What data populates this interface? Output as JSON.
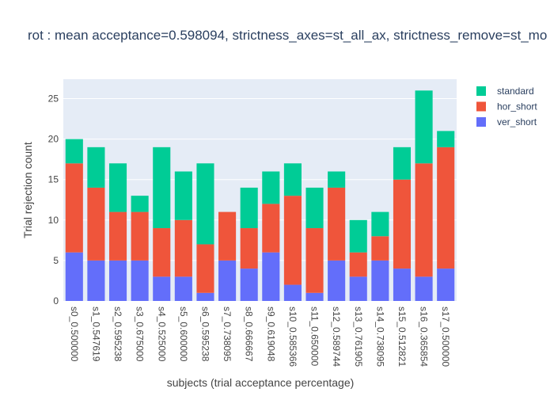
{
  "chart_data": {
    "type": "bar",
    "barmode": "stack",
    "title": "rot : mean acceptance=0.598094, strictness_axes=st_all_ax, strictness_remove=st_mo",
    "xlabel": "subjects (trial acceptance percentage)",
    "ylabel": "Trial rejection count",
    "ylim": [
      0,
      27.4
    ],
    "yticks": [
      0,
      5,
      10,
      15,
      20,
      25
    ],
    "grid": true,
    "legend_position": "top-right",
    "categories": [
      "s0_0.500000",
      "s1_0.547619",
      "s2_0.595238",
      "s3_0.675000",
      "s4_0.525000",
      "s5_0.600000",
      "s6_0.595238",
      "s7_0.738095",
      "s8_0.666667",
      "s9_0.619048",
      "s10_0.585366",
      "s11_0.650000",
      "s12_0.589744",
      "s13_0.761905",
      "s14_0.738095",
      "s15_0.512821",
      "s16_0.365854",
      "s17_0.500000"
    ],
    "series": [
      {
        "name": "ver_short",
        "color": "#636efa",
        "values": [
          6,
          5,
          5,
          5,
          3,
          3,
          1,
          5,
          4,
          6,
          2,
          1,
          5,
          3,
          5,
          4,
          3,
          4
        ]
      },
      {
        "name": "hor_short",
        "color": "#ef553b",
        "values": [
          11,
          9,
          6,
          6,
          6,
          7,
          6,
          6,
          5,
          6,
          11,
          8,
          9,
          3,
          3,
          11,
          14,
          15
        ]
      },
      {
        "name": "standard",
        "color": "#00cc96",
        "values": [
          3,
          5,
          6,
          2,
          10,
          6,
          10,
          0,
          5,
          4,
          4,
          5,
          2,
          4,
          3,
          4,
          9,
          2
        ]
      }
    ],
    "legend_order": [
      "standard",
      "hor_short",
      "ver_short"
    ]
  },
  "style": {
    "plot_bg": "#e5ecf6",
    "grid_color": "#ffffff"
  }
}
